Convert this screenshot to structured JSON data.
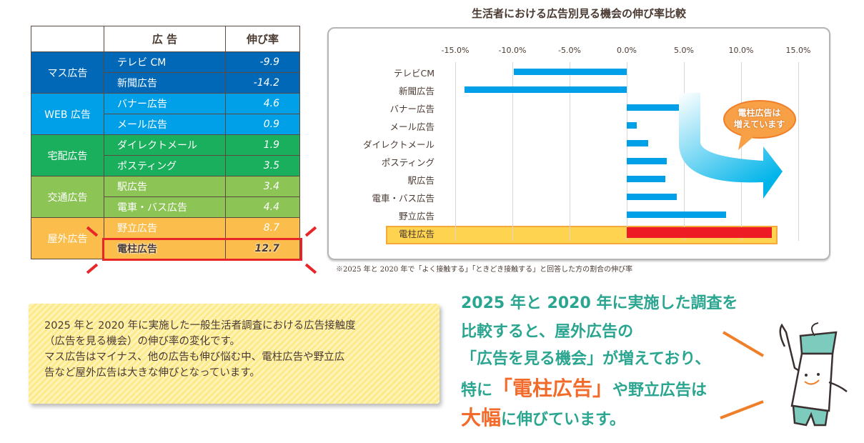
{
  "table": {
    "headers": [
      "",
      "広 告",
      "伸び率"
    ],
    "groups": [
      {
        "name": "マス広告",
        "rows": [
          {
            "name": "テレビ CM",
            "value": "-9.9"
          },
          {
            "name": "新聞広告",
            "value": "-14.2"
          }
        ]
      },
      {
        "name": "WEB 広告",
        "rows": [
          {
            "name": "バナー広告",
            "value": "4.6"
          },
          {
            "name": "メール広告",
            "value": "0.9"
          }
        ]
      },
      {
        "name": "宅配広告",
        "rows": [
          {
            "name": "ダイレクトメール",
            "value": "1.9"
          },
          {
            "name": "ポスティング",
            "value": "3.5"
          }
        ]
      },
      {
        "name": "交通広告",
        "rows": [
          {
            "name": "駅広告",
            "value": "3.4"
          },
          {
            "name": "電車・バス広告",
            "value": "4.4"
          }
        ]
      },
      {
        "name": "屋外広告",
        "rows": [
          {
            "name": "野立広告",
            "value": "8.7"
          },
          {
            "name": "電柱広告",
            "value": "12.7"
          }
        ]
      }
    ]
  },
  "chart_data": {
    "type": "bar",
    "orientation": "horizontal",
    "title": "生活者における広告別見る機会の伸び率比較",
    "categories": [
      "テレビCM",
      "新聞広告",
      "バナー広告",
      "メール広告",
      "ダイレクトメール",
      "ポスティング",
      "駅広告",
      "電車・バス広告",
      "野立広告",
      "電柱広告"
    ],
    "values": [
      -9.9,
      -14.2,
      4.6,
      0.9,
      1.9,
      3.5,
      3.4,
      4.4,
      8.7,
      12.7
    ],
    "xlim": [
      -15,
      15
    ],
    "ticks": [
      "-15.0%",
      "-10.0%",
      "-5.0%",
      "0.0%",
      "5.0%",
      "10.0%",
      "15.0%"
    ],
    "tick_values": [
      -15,
      -10,
      -5,
      0,
      5,
      10,
      15
    ],
    "grid": true,
    "highlight": "電柱広告",
    "bar_color": "#00a0e9",
    "highlight_color": "#ed1c24",
    "callout": [
      "電柱広告は",
      "増えています"
    ],
    "footnote": "※2025 年と 2020 年で「よく接触する」「ときどき接触する」と回答した方の割合の伸び率"
  },
  "note": [
    "2025 年と 2020 年に実施した一般生活者調査における広告接触度",
    "（広告を見る機会）の伸び率の変化です。",
    "マス広告はマイナス、他の広告も伸び悩む中、電柱広告や野立広",
    "告など屋外広告は大きな伸びとなっています。"
  ],
  "message": {
    "l1": "2025 年と 2020 年に実施した調査を",
    "l2": "比較すると、屋外広告の",
    "l3": "「広告を見る機会」が増えており、",
    "l4a": "特に",
    "l4b": "「電柱広告」",
    "l4c": "や野立広告は",
    "l5a": "大幅",
    "l5b": "に伸びています。"
  }
}
